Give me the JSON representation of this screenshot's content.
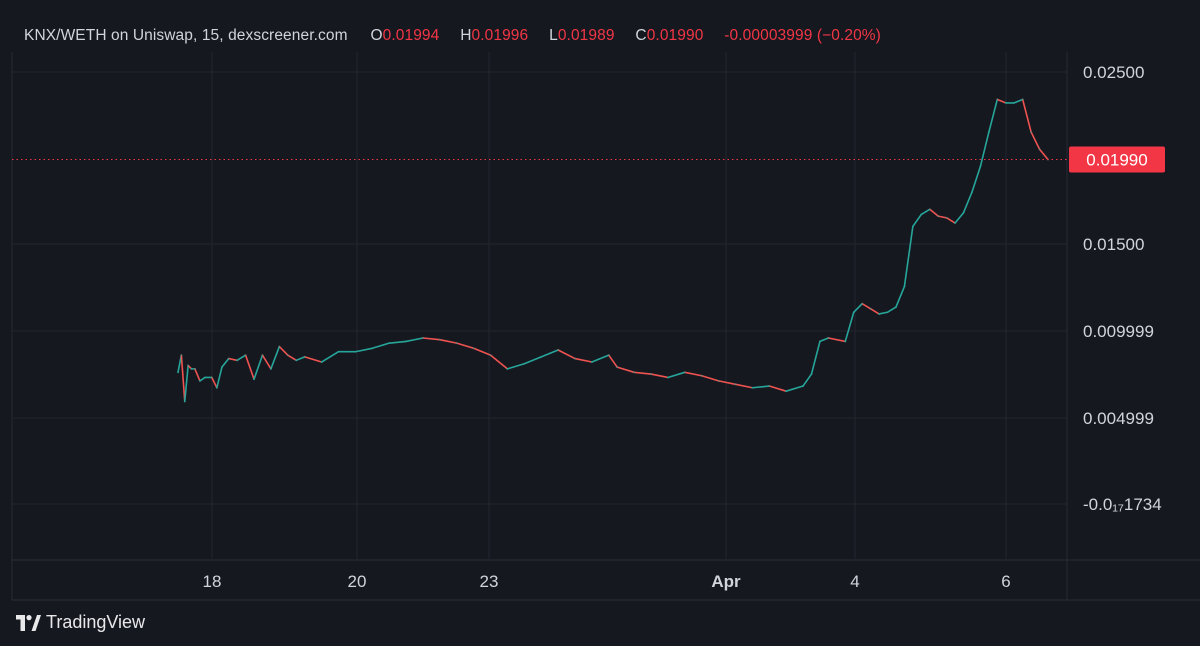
{
  "header": {
    "symbol_info": "KNX/WETH on Uniswap, 15, dexscreener.com",
    "o_label": "O",
    "o_value": "0.01994",
    "h_label": "H",
    "h_value": "0.01996",
    "l_label": "L",
    "l_value": "0.01989",
    "c_label": "C",
    "c_value": "0.01990",
    "change": "-0.00003999 (−0.20%)"
  },
  "last_price_label": "0.01990",
  "branding": {
    "text": "TradingView",
    "icon": "tradingview-logo-icon"
  },
  "colors": {
    "background": "#161820",
    "grid": "#22252f",
    "text": "#d1d4dc",
    "up": "#26a69a",
    "down": "#ef5350",
    "price_line": "#f23645"
  },
  "chart_data": {
    "type": "line",
    "title": "",
    "xlabel": "",
    "ylabel": "",
    "x_ticks": [
      "18",
      "20",
      "23",
      "Apr",
      "4",
      "6"
    ],
    "y_ticks": [
      "0.02500",
      "0.01500",
      "0.009999",
      "0.004999",
      "-0.0₁₇1734"
    ],
    "ylim": [
      -0.0001734,
      0.025
    ],
    "last_price": 0.0199,
    "grid": true,
    "series": [
      {
        "points": [
          [
            0,
            0.0075
          ],
          [
            0.4,
            0.0085
          ],
          [
            0.8,
            0.0058
          ],
          [
            1.2,
            0.0079
          ],
          [
            1.6,
            0.0077
          ],
          [
            2,
            0.0077
          ],
          [
            2.6,
            0.007
          ],
          [
            3.2,
            0.0072
          ],
          [
            4,
            0.0072
          ],
          [
            4.6,
            0.0066
          ],
          [
            5.2,
            0.0078
          ],
          [
            6,
            0.0083
          ],
          [
            7,
            0.0082
          ],
          [
            8,
            0.0085
          ],
          [
            9,
            0.0071
          ],
          [
            10,
            0.0085
          ],
          [
            11,
            0.0077
          ],
          [
            12,
            0.009
          ],
          [
            13,
            0.0085
          ],
          [
            14,
            0.0082
          ],
          [
            15,
            0.0084
          ],
          [
            17,
            0.0081
          ],
          [
            19,
            0.0087
          ],
          [
            21,
            0.0087
          ],
          [
            23,
            0.0089
          ],
          [
            25,
            0.0092
          ],
          [
            27,
            0.0093
          ],
          [
            29,
            0.0095
          ],
          [
            31,
            0.0094
          ],
          [
            33,
            0.0092
          ],
          [
            35,
            0.0089
          ],
          [
            37,
            0.0085
          ],
          [
            39,
            0.0077
          ],
          [
            41,
            0.008
          ],
          [
            43,
            0.0084
          ],
          [
            45,
            0.0088
          ],
          [
            47,
            0.0083
          ],
          [
            49,
            0.0081
          ],
          [
            51,
            0.0085
          ],
          [
            52,
            0.0078
          ],
          [
            54,
            0.0075
          ],
          [
            56,
            0.0074
          ],
          [
            58,
            0.0072
          ],
          [
            60,
            0.0075
          ],
          [
            62,
            0.0073
          ],
          [
            64,
            0.007
          ],
          [
            66,
            0.0068
          ],
          [
            68,
            0.0066
          ],
          [
            70,
            0.0067
          ],
          [
            72,
            0.0064
          ],
          [
            74,
            0.0067
          ],
          [
            75,
            0.0074
          ],
          [
            76,
            0.0093
          ],
          [
            77,
            0.0095
          ],
          [
            79,
            0.0093
          ],
          [
            80,
            0.011
          ],
          [
            81,
            0.0115
          ],
          [
            82,
            0.0112
          ],
          [
            83,
            0.0109
          ],
          [
            84,
            0.011
          ],
          [
            85,
            0.0113
          ],
          [
            86,
            0.0125
          ],
          [
            87,
            0.016
          ],
          [
            88,
            0.0167
          ],
          [
            89,
            0.017
          ],
          [
            90,
            0.0166
          ],
          [
            91,
            0.0165
          ],
          [
            92,
            0.0162
          ],
          [
            93,
            0.0168
          ],
          [
            94,
            0.018
          ],
          [
            95,
            0.0195
          ],
          [
            96,
            0.0215
          ],
          [
            97,
            0.0234
          ],
          [
            98,
            0.0232
          ],
          [
            99,
            0.0232
          ],
          [
            100,
            0.0234
          ],
          [
            101,
            0.0215
          ],
          [
            102,
            0.0205
          ],
          [
            103,
            0.0199
          ]
        ]
      }
    ]
  }
}
